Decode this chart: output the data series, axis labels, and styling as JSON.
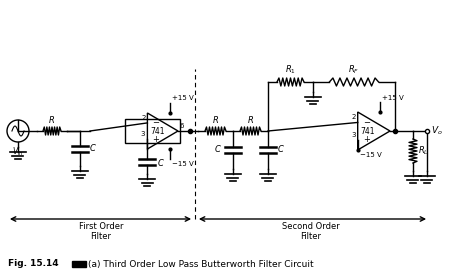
{
  "title_text": "(a) Third Order Low Pass Butterworth Filter Circuit",
  "first_order_label": "First Order\nFilter",
  "second_order_label": "Second Order\nFilter",
  "bg_color": "#ffffff",
  "line_color": "#000000",
  "fig_width": 4.74,
  "fig_height": 2.79,
  "dpi": 100
}
